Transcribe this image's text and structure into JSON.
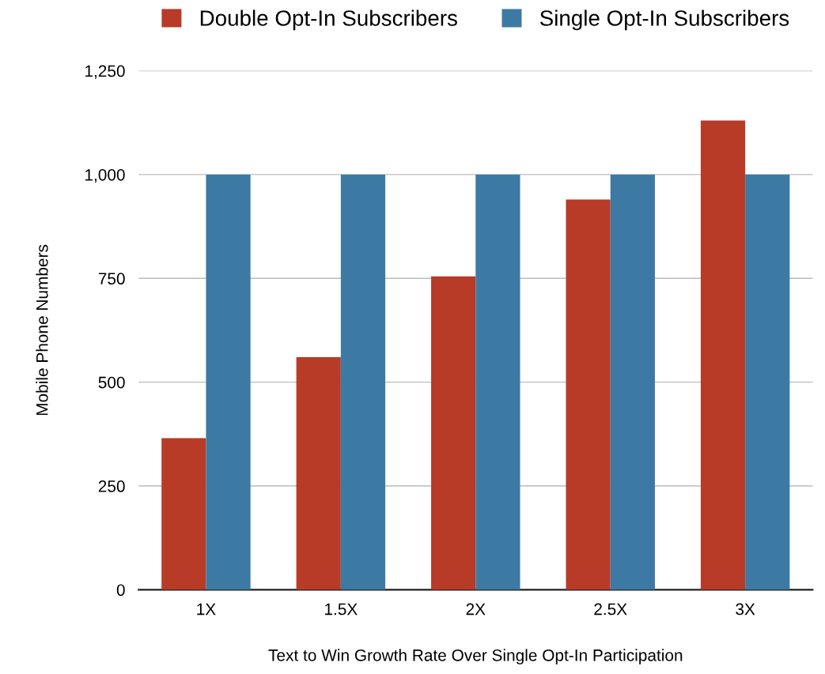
{
  "chart_data": {
    "type": "bar",
    "xlabel": "Text to Win Growth Rate Over Single Opt-In Participation",
    "ylabel": "Mobile Phone Numbers",
    "categories": [
      "1X",
      "1.5X",
      "2X",
      "2.5X",
      "3X"
    ],
    "series": [
      {
        "name": "Double Opt-In Subscribers",
        "color": "#b83b28",
        "values": [
          365,
          560,
          755,
          940,
          1130
        ]
      },
      {
        "name": "Single Opt-In Subscribers",
        "color": "#3d7aa3",
        "values": [
          1000,
          1000,
          1000,
          1000,
          1000
        ]
      }
    ],
    "ylim": [
      0,
      1250
    ],
    "yticks": [
      0,
      250,
      500,
      750,
      {
        "value": 1000,
        "label": "1,000"
      },
      {
        "value": 1250,
        "label": "1,250"
      }
    ],
    "grid": "y",
    "legend": "top"
  }
}
